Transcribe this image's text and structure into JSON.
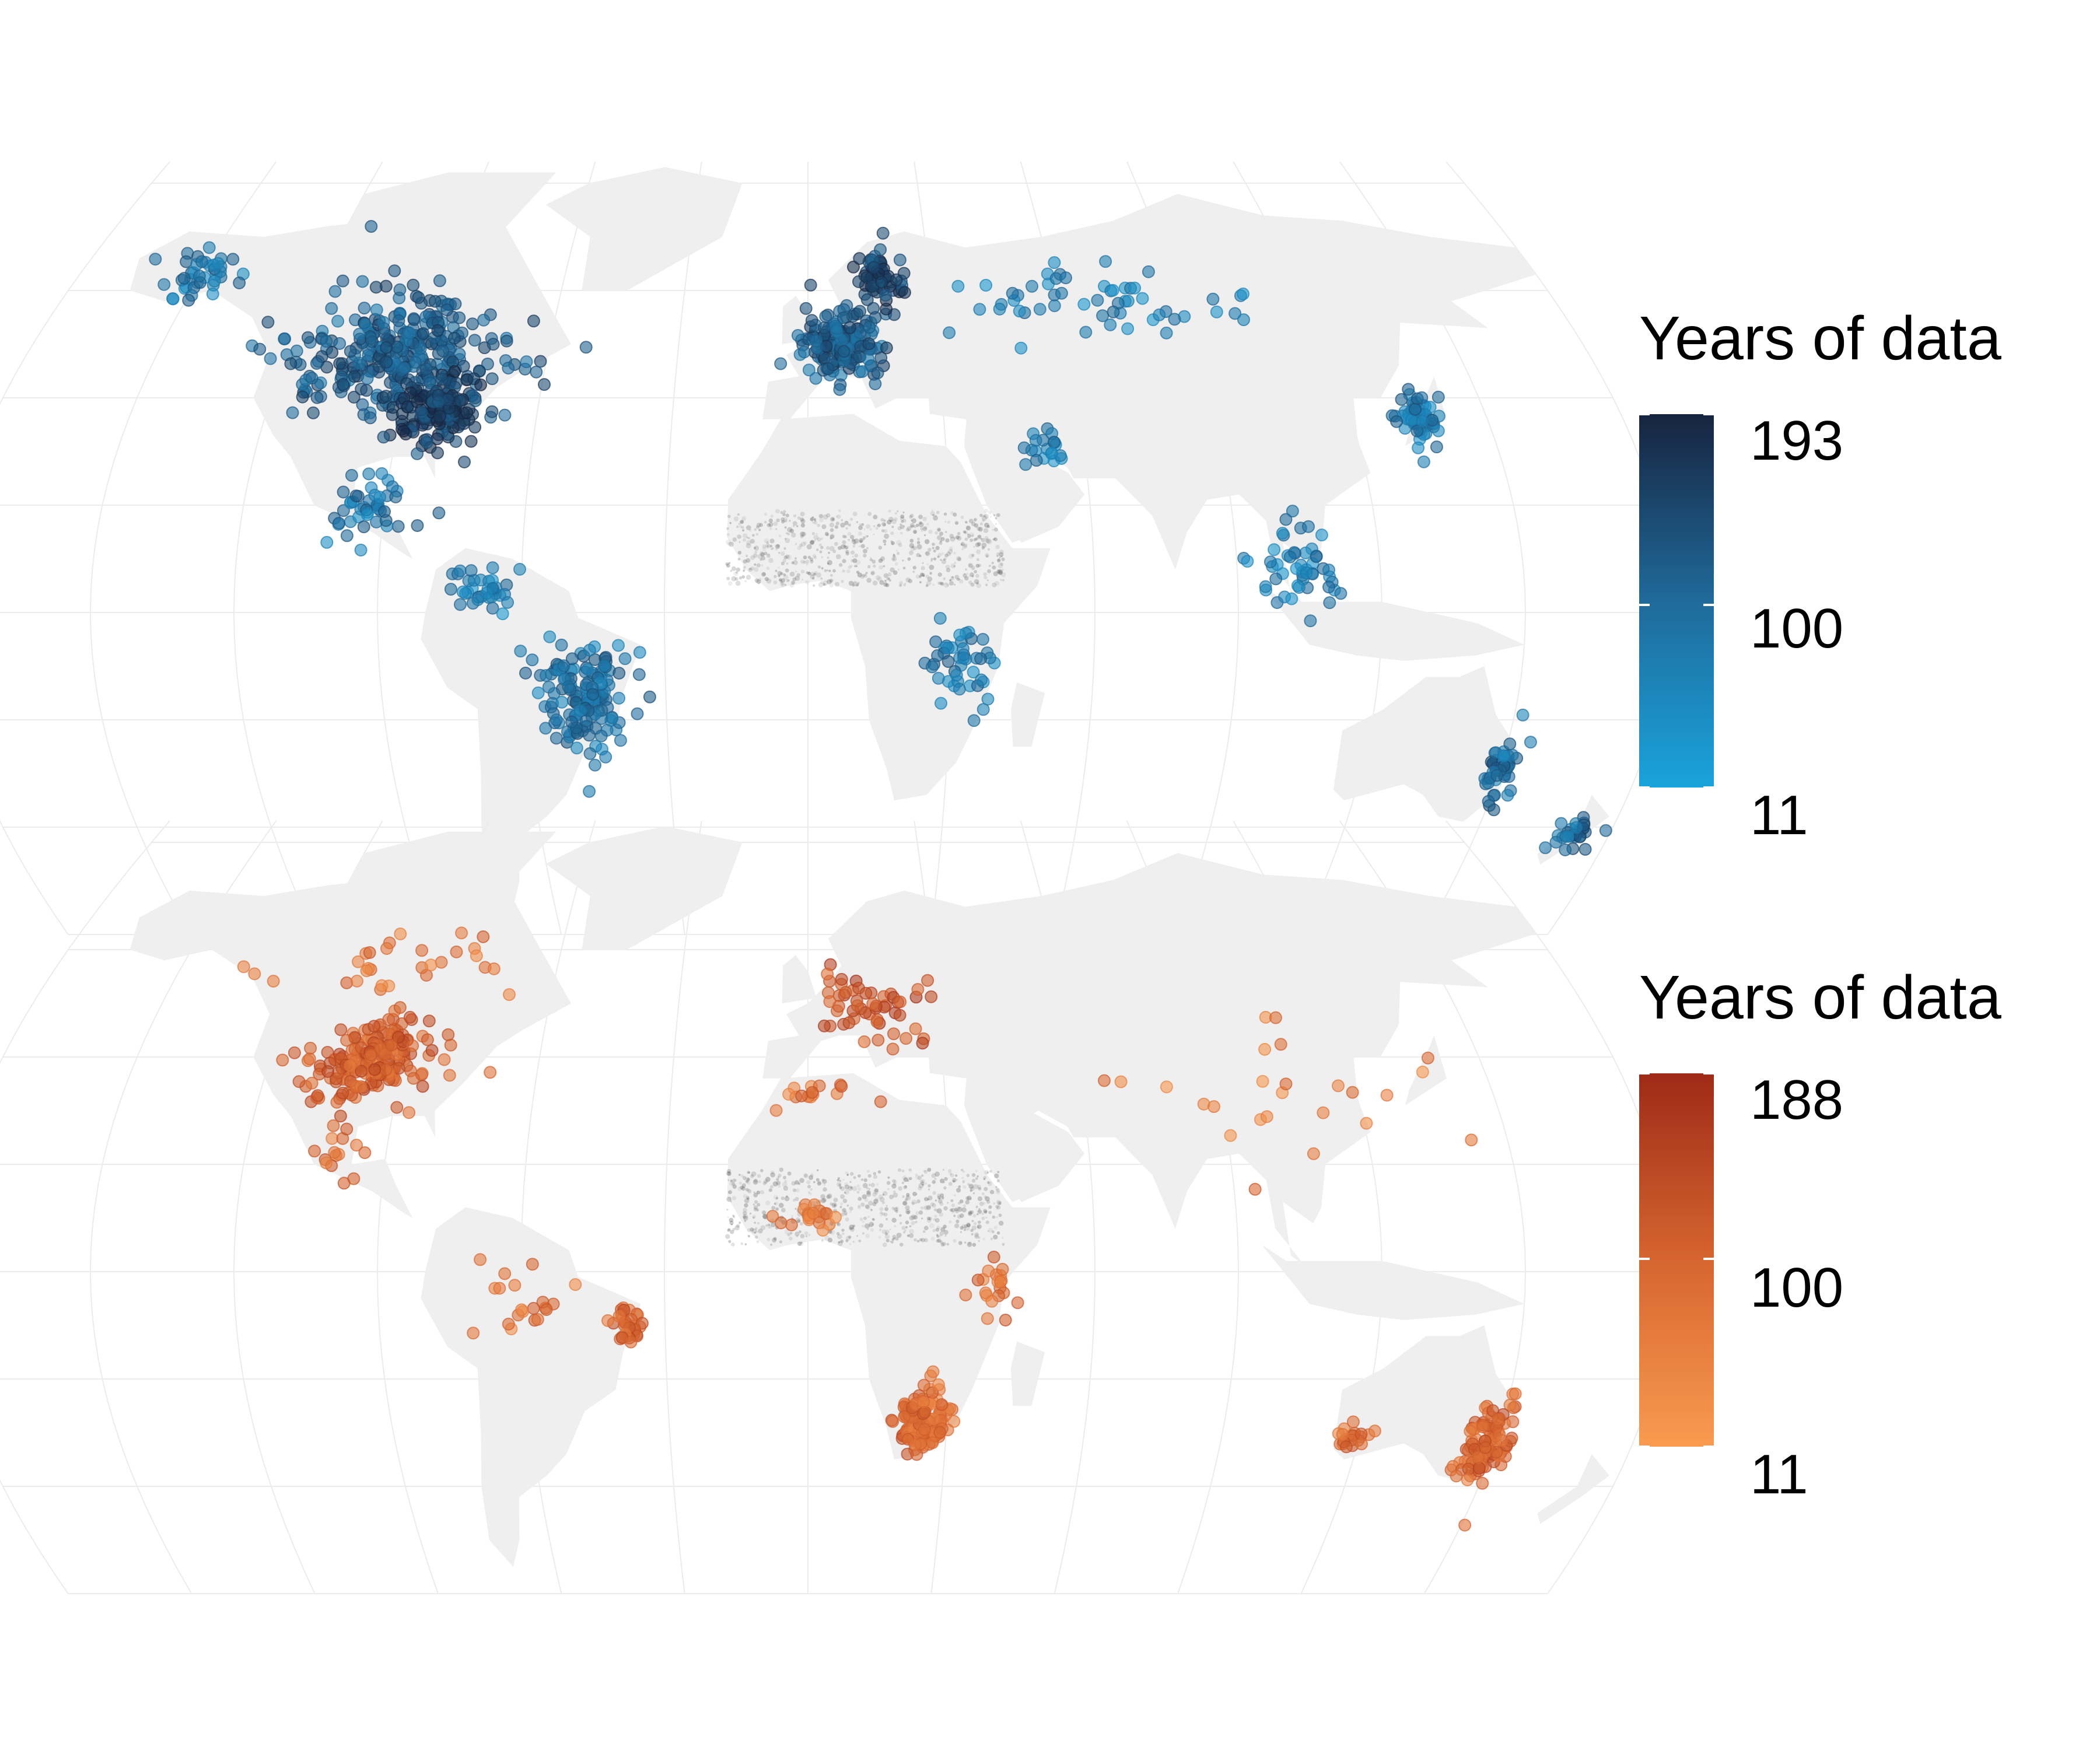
{
  "maps": [
    {
      "id": "blue",
      "legend": {
        "title": "Years of data",
        "min": 11,
        "mid": 100,
        "max": 193,
        "labels": [
          "193",
          "100",
          "11"
        ],
        "color_low": "#1aa3dc",
        "color_mid": "#1f6a9a",
        "color_high": "#17243f"
      },
      "point_color": "#1a95cf",
      "clusters": [
        {
          "region": "Canada and USA",
          "lon": -95,
          "lat": 48,
          "spread": [
            22,
            10
          ],
          "n": 320,
          "level": 0.55
        },
        {
          "region": "Eastern USA",
          "lon": -82,
          "lat": 38,
          "spread": [
            9,
            6
          ],
          "n": 160,
          "level": 0.75
        },
        {
          "region": "Alaska",
          "lon": -150,
          "lat": 63,
          "spread": [
            10,
            4
          ],
          "n": 40,
          "level": 0.35
        },
        {
          "region": "Mexico and Central America",
          "lon": -95,
          "lat": 20,
          "spread": [
            8,
            6
          ],
          "n": 45,
          "level": 0.35
        },
        {
          "region": "Brazil",
          "lon": -48,
          "lat": -15,
          "spread": [
            9,
            9
          ],
          "n": 150,
          "level": 0.4
        },
        {
          "region": "Northern South America",
          "lon": -68,
          "lat": 4,
          "spread": [
            8,
            4
          ],
          "n": 35,
          "level": 0.3
        },
        {
          "region": "Western Europe",
          "lon": 8,
          "lat": 50,
          "spread": [
            9,
            6
          ],
          "n": 170,
          "level": 0.55
        },
        {
          "region": "Scandinavia",
          "lon": 18,
          "lat": 62,
          "spread": [
            6,
            4
          ],
          "n": 60,
          "level": 0.75
        },
        {
          "region": "Russia",
          "lon": 70,
          "lat": 58,
          "spread": [
            35,
            7
          ],
          "n": 55,
          "level": 0.3
        },
        {
          "region": "East Africa",
          "lon": 32,
          "lat": -10,
          "spread": [
            6,
            7
          ],
          "n": 45,
          "level": 0.35
        },
        {
          "region": "Japan and Korea",
          "lon": 135,
          "lat": 36,
          "spread": [
            4,
            4
          ],
          "n": 60,
          "level": 0.35
        },
        {
          "region": "Southeast Asia",
          "lon": 103,
          "lat": 8,
          "spread": [
            8,
            8
          ],
          "n": 50,
          "level": 0.3
        },
        {
          "region": "Middle East",
          "lon": 50,
          "lat": 30,
          "spread": [
            6,
            3
          ],
          "n": 20,
          "level": 0.3
        },
        {
          "region": "Eastern Australia",
          "lon": 150,
          "lat": -30,
          "spread": [
            3,
            6
          ],
          "n": 45,
          "level": 0.45
        },
        {
          "region": "New Zealand",
          "lon": 172,
          "lat": -41,
          "spread": [
            4,
            3
          ],
          "n": 30,
          "level": 0.45
        }
      ]
    },
    {
      "id": "orange",
      "legend": {
        "title": "Years of data",
        "min": 11,
        "mid": 100,
        "max": 188,
        "labels": [
          "188",
          "100",
          "11"
        ],
        "color_low": "#f99b51",
        "color_mid": "#d6652f",
        "color_high": "#9e2a17"
      },
      "point_color": "#ef8a45",
      "clusters": [
        {
          "region": "Central USA",
          "lon": -97,
          "lat": 40,
          "spread": [
            12,
            7
          ],
          "n": 200,
          "level": 0.5
        },
        {
          "region": "Canada",
          "lon": -100,
          "lat": 58,
          "spread": [
            25,
            6
          ],
          "n": 30,
          "level": 0.3
        },
        {
          "region": "Mexico",
          "lon": -100,
          "lat": 22,
          "spread": [
            6,
            4
          ],
          "n": 15,
          "level": 0.35
        },
        {
          "region": "South America",
          "lon": -60,
          "lat": -5,
          "spread": [
            12,
            8
          ],
          "n": 20,
          "level": 0.3
        },
        {
          "region": "Eastern Brazil",
          "lon": -38,
          "lat": -10,
          "spread": [
            3,
            4
          ],
          "n": 35,
          "level": 0.45
        },
        {
          "region": "Europe",
          "lon": 15,
          "lat": 50,
          "spread": [
            12,
            7
          ],
          "n": 55,
          "level": 0.6
        },
        {
          "region": "North Africa",
          "lon": 0,
          "lat": 33,
          "spread": [
            8,
            3
          ],
          "n": 15,
          "level": 0.35
        },
        {
          "region": "West Africa",
          "lon": 0,
          "lat": 10,
          "spread": [
            6,
            3
          ],
          "n": 20,
          "level": 0.3
        },
        {
          "region": "Southern Africa",
          "lon": 25,
          "lat": -28,
          "spread": [
            5,
            5
          ],
          "n": 150,
          "level": 0.4
        },
        {
          "region": "East Africa",
          "lon": 38,
          "lat": -3,
          "spread": [
            4,
            5
          ],
          "n": 20,
          "level": 0.35
        },
        {
          "region": "Asia",
          "lon": 100,
          "lat": 35,
          "spread": [
            30,
            15
          ],
          "n": 25,
          "level": 0.25
        },
        {
          "region": "Eastern Australia",
          "lon": 148,
          "lat": -32,
          "spread": [
            4,
            7
          ],
          "n": 110,
          "level": 0.45
        },
        {
          "region": "Southwestern Australia",
          "lon": 118,
          "lat": -31,
          "spread": [
            4,
            2
          ],
          "n": 20,
          "level": 0.4
        }
      ]
    }
  ]
}
